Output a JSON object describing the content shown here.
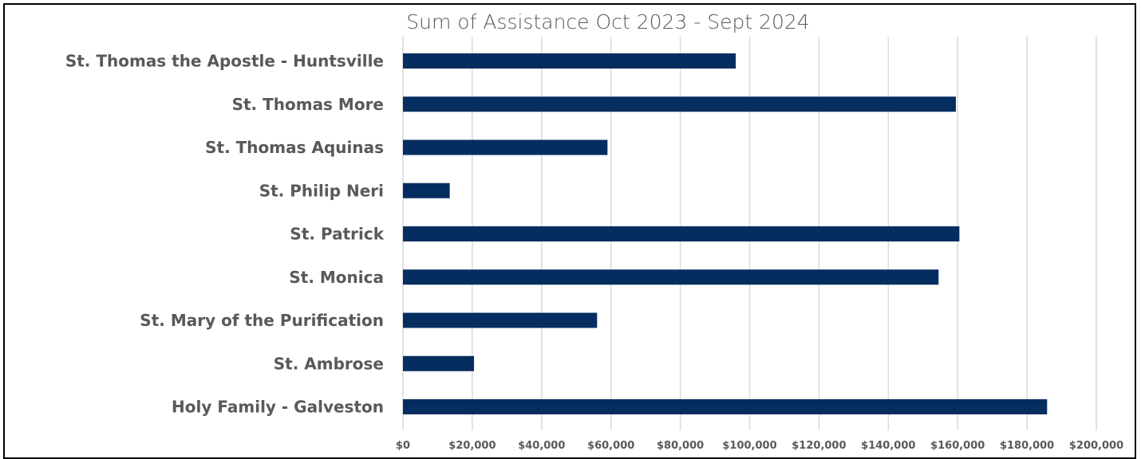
{
  "chart_data": {
    "type": "bar",
    "orientation": "horizontal",
    "title": "Sum of Assistance Oct 2023 - Sept 2024",
    "xlabel": "",
    "ylabel": "",
    "categories": [
      "St. Thomas the Apostle - Huntsville",
      "St. Thomas More",
      "St. Thomas Aquinas",
      "St. Philip Neri",
      "St. Patrick",
      "St. Monica",
      "St. Mary of the Purification",
      "St. Ambrose",
      "Holy Family - Galveston"
    ],
    "values": [
      96000,
      159500,
      59000,
      13500,
      160500,
      154500,
      56000,
      20500,
      185800
    ],
    "xlim": [
      0,
      200000
    ],
    "xticks": [
      0,
      20000,
      40000,
      60000,
      80000,
      100000,
      120000,
      140000,
      160000,
      180000,
      200000
    ],
    "xtick_labels": [
      "$0",
      "$20,000",
      "$40,000",
      "$60,000",
      "$80,000",
      "$100,000",
      "$120,000",
      "$140,000",
      "$160,000",
      "$180,000",
      "$200,000"
    ],
    "grid": "vertical",
    "legend": "none",
    "bar_color": "#062d5f"
  }
}
